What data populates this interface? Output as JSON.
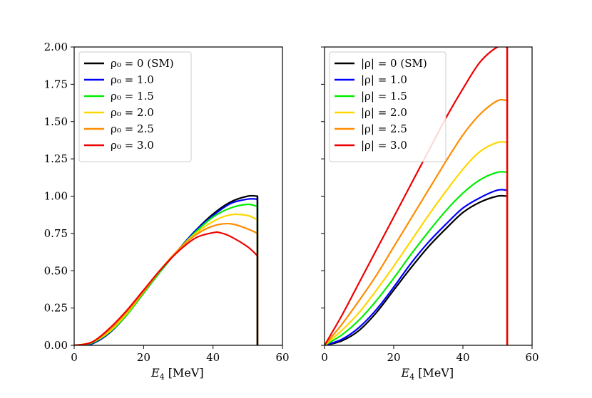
{
  "chart_data": [
    {
      "type": "line",
      "panel": "left",
      "xlabel": "E_4 [MeV]",
      "xlabel_main": "E",
      "xlabel_sub": "4",
      "xlabel_unit": "[MeV]",
      "ylabel": "",
      "xlim": [
        0,
        60
      ],
      "ylim": [
        0,
        2
      ],
      "xticks": [
        "0",
        "20",
        "40",
        "60"
      ],
      "yticks": [
        "0.00",
        "0.25",
        "0.50",
        "0.75",
        "1.00",
        "1.25",
        "1.50",
        "1.75",
        "2.00"
      ],
      "legend_position": "top-left",
      "legend": [
        "ρ₀ = 0 (SM)",
        "ρ₀ = 1.0",
        "ρ₀ = 1.5",
        "ρ₀ = 2.0",
        "ρ₀ = 2.5",
        "ρ₀ = 3.0"
      ],
      "endpoint_x": 52.8,
      "series": [
        {
          "name": "ρ₀ = 0 (SM)",
          "color": "#000000",
          "x": [
            0,
            5,
            10,
            15,
            20,
            25,
            30,
            35,
            40,
            45,
            50,
            52.8
          ],
          "y": [
            0.0,
            0.01,
            0.08,
            0.2,
            0.35,
            0.5,
            0.64,
            0.77,
            0.88,
            0.96,
            1.0,
            1.0
          ]
        },
        {
          "name": "ρ₀ = 1.0",
          "color": "#0000ff",
          "x": [
            0,
            5,
            10,
            15,
            20,
            25,
            30,
            35,
            40,
            45,
            50,
            52.8
          ],
          "y": [
            0.0,
            0.01,
            0.08,
            0.2,
            0.35,
            0.5,
            0.64,
            0.77,
            0.87,
            0.95,
            0.98,
            0.98
          ]
        },
        {
          "name": "ρ₀ = 1.5",
          "color": "#00ee00",
          "x": [
            0,
            5,
            10,
            15,
            20,
            25,
            30,
            35,
            40,
            45,
            50,
            52.8
          ],
          "y": [
            0.0,
            0.015,
            0.085,
            0.2,
            0.35,
            0.5,
            0.64,
            0.76,
            0.86,
            0.92,
            0.945,
            0.93
          ]
        },
        {
          "name": "ρ₀ = 2.0",
          "color": "#ffd700",
          "x": [
            0,
            5,
            10,
            15,
            20,
            25,
            30,
            35,
            40,
            45,
            50,
            52.8
          ],
          "y": [
            0.0,
            0.02,
            0.09,
            0.21,
            0.36,
            0.51,
            0.64,
            0.75,
            0.83,
            0.875,
            0.87,
            0.84
          ]
        },
        {
          "name": "ρ₀ = 2.5",
          "color": "#ff8c00",
          "x": [
            0,
            5,
            10,
            15,
            20,
            25,
            30,
            35,
            40,
            45,
            50,
            52.8
          ],
          "y": [
            0.0,
            0.02,
            0.1,
            0.22,
            0.36,
            0.51,
            0.64,
            0.74,
            0.8,
            0.815,
            0.78,
            0.75
          ]
        },
        {
          "name": "ρ₀ = 3.0",
          "color": "#ee0000",
          "x": [
            0,
            5,
            10,
            15,
            20,
            25,
            30,
            35,
            40,
            42,
            45,
            50,
            52.8
          ],
          "y": [
            0.0,
            0.02,
            0.11,
            0.23,
            0.37,
            0.51,
            0.63,
            0.72,
            0.755,
            0.755,
            0.73,
            0.66,
            0.6
          ]
        }
      ]
    },
    {
      "type": "line",
      "panel": "right",
      "xlabel": "E_4 [MeV]",
      "xlabel_main": "E",
      "xlabel_sub": "4",
      "xlabel_unit": "[MeV]",
      "ylabel": "",
      "xlim": [
        0,
        60
      ],
      "ylim": [
        0,
        2
      ],
      "xticks": [
        "0",
        "20",
        "40",
        "60"
      ],
      "yticks": [],
      "legend_position": "top-left",
      "legend": [
        "|ρ| = 0 (SM)",
        "|ρ| = 1.0",
        "|ρ| = 1.5",
        "|ρ| = 2.0",
        "|ρ| = 2.5",
        "|ρ| = 3.0"
      ],
      "endpoint_x": 52.8,
      "series": [
        {
          "name": "|ρ| = 0 (SM)",
          "color": "#000000",
          "x": [
            0,
            5,
            10,
            15,
            20,
            25,
            30,
            35,
            40,
            45,
            50,
            52.8
          ],
          "y": [
            0.0,
            0.03,
            0.1,
            0.22,
            0.37,
            0.52,
            0.66,
            0.78,
            0.89,
            0.96,
            1.0,
            1.0
          ]
        },
        {
          "name": "|ρ| = 1.0",
          "color": "#0000ff",
          "x": [
            0,
            5,
            10,
            15,
            20,
            25,
            30,
            35,
            40,
            45,
            50,
            52.8
          ],
          "y": [
            0.0,
            0.04,
            0.12,
            0.24,
            0.39,
            0.55,
            0.69,
            0.81,
            0.92,
            0.99,
            1.04,
            1.04
          ]
        },
        {
          "name": "|ρ| = 1.5",
          "color": "#00ee00",
          "x": [
            0,
            5,
            10,
            15,
            20,
            25,
            30,
            35,
            40,
            45,
            50,
            52.8
          ],
          "y": [
            0.0,
            0.07,
            0.17,
            0.3,
            0.45,
            0.61,
            0.76,
            0.9,
            1.02,
            1.11,
            1.16,
            1.16
          ]
        },
        {
          "name": "|ρ| = 2.0",
          "color": "#ffd700",
          "x": [
            0,
            5,
            10,
            15,
            20,
            25,
            30,
            35,
            40,
            45,
            50,
            52.8
          ],
          "y": [
            0.0,
            0.1,
            0.22,
            0.37,
            0.53,
            0.7,
            0.87,
            1.03,
            1.18,
            1.3,
            1.36,
            1.36
          ]
        },
        {
          "name": "|ρ| = 2.5",
          "color": "#ff8c00",
          "x": [
            0,
            5,
            10,
            15,
            20,
            25,
            30,
            35,
            40,
            45,
            50,
            52.8
          ],
          "y": [
            0.0,
            0.14,
            0.3,
            0.47,
            0.66,
            0.85,
            1.04,
            1.23,
            1.41,
            1.55,
            1.64,
            1.64
          ]
        },
        {
          "name": "|ρ| = 3.0",
          "color": "#ee0000",
          "x": [
            0,
            5,
            10,
            15,
            20,
            25,
            30,
            35,
            40,
            45,
            50,
            52.8
          ],
          "y": [
            0.0,
            0.2,
            0.42,
            0.64,
            0.86,
            1.08,
            1.3,
            1.52,
            1.72,
            1.9,
            2.0,
            2.0
          ]
        }
      ]
    }
  ]
}
